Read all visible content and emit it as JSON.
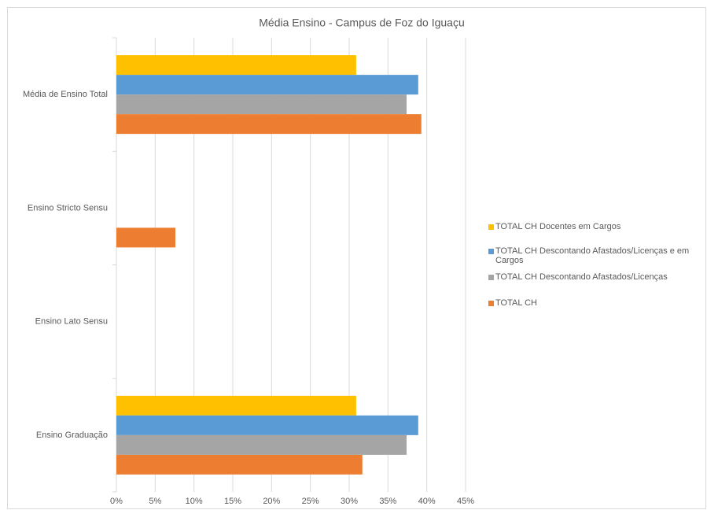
{
  "chart_data": {
    "type": "hbar",
    "title": "Média Ensino - Campus de Foz do Iguaçu",
    "categories": [
      "Média de Ensino Total",
      "Ensino Stricto Sensu",
      "Ensino Lato Sensu",
      "Ensino Graduação"
    ],
    "series": [
      {
        "name": "TOTAL CH Docentes em Cargos",
        "color": "#ffc000",
        "values": [
          30.9,
          0,
          0,
          30.9
        ]
      },
      {
        "name": "TOTAL CH Descontando Afastados/Licenças e em Cargos",
        "color": "#5b9bd5",
        "values": [
          38.9,
          0,
          0,
          38.9
        ]
      },
      {
        "name": "TOTAL CH Descontando Afastados/Licenças",
        "color": "#a5a5a5",
        "values": [
          37.4,
          0,
          0,
          37.4
        ]
      },
      {
        "name": "TOTAL CH",
        "color": "#ed7d31",
        "values": [
          39.3,
          7.6,
          0,
          31.7
        ]
      }
    ],
    "xlim": [
      0,
      45
    ],
    "xticks": [
      {
        "value": 0,
        "label": "0%"
      },
      {
        "value": 5,
        "label": "5%"
      },
      {
        "value": 10,
        "label": "10%"
      },
      {
        "value": 15,
        "label": "15%"
      },
      {
        "value": 20,
        "label": "20%"
      },
      {
        "value": 25,
        "label": "25%"
      },
      {
        "value": 30,
        "label": "30%"
      },
      {
        "value": 35,
        "label": "35%"
      },
      {
        "value": 40,
        "label": "40%"
      },
      {
        "value": 45,
        "label": "45%"
      }
    ],
    "grid": true,
    "legend": "right"
  }
}
